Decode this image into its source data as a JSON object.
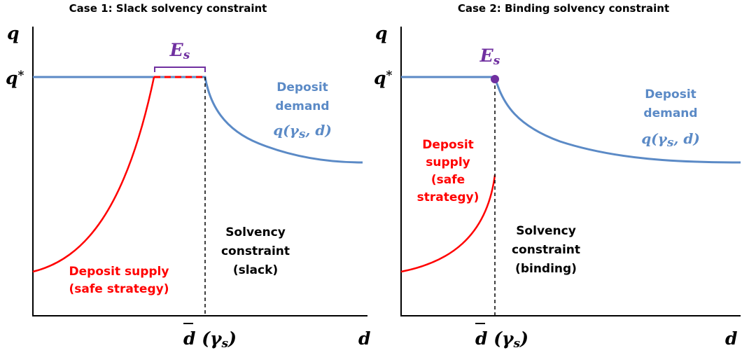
{
  "panels": [
    {
      "title": "Case 1: Slack solvency constraint",
      "y_axis_label": "q",
      "q_star": {
        "base": "q",
        "sup": "*"
      },
      "equilibrium": {
        "base": "E",
        "sub": "s"
      },
      "demand_label": [
        "Deposit",
        "demand"
      ],
      "demand_formula": {
        "open": "q(γ",
        "sub": "s",
        "close": ", d)"
      },
      "constraint_label": [
        "Solvency",
        "constraint",
        "(slack)"
      ],
      "supply_label": [
        "Deposit  supply",
        "(safe strategy)"
      ],
      "d_bar": {
        "base": "d",
        "open": " (γ",
        "sub": "s",
        "close": ")"
      },
      "x_axis_label": "d"
    },
    {
      "title": "Case 2: Binding solvency constraint",
      "y_axis_label": "q",
      "q_star": {
        "base": "q",
        "sup": "*"
      },
      "equilibrium": {
        "base": "E",
        "sub": "s"
      },
      "demand_label": [
        "Deposit",
        "demand"
      ],
      "demand_formula": {
        "open": "q(γ",
        "sub": "s",
        "close": ", d)"
      },
      "constraint_label": [
        "Solvency",
        "constraint",
        "(binding)"
      ],
      "supply_label": [
        "Deposit",
        "supply",
        "(safe",
        "strategy)"
      ],
      "d_bar": {
        "base": "d",
        "open": " (γ",
        "sub": "s",
        "close": ")"
      },
      "x_axis_label": "d"
    }
  ]
}
